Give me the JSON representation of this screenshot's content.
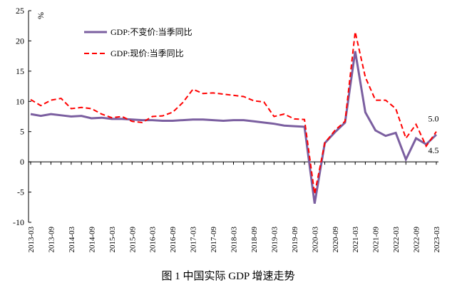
{
  "chart_data": {
    "type": "line",
    "y_label": "%",
    "caption": "图 1   中国实际 GDP 增速走势",
    "categories": [
      "2013-03",
      null,
      "2013-09",
      null,
      "2014-03",
      null,
      "2014-09",
      null,
      "2015-03",
      null,
      "2015-09",
      null,
      "2016-03",
      null,
      "2016-09",
      null,
      "2017-03",
      null,
      "2017-09",
      null,
      "2018-03",
      null,
      "2018-09",
      null,
      "2019-03",
      null,
      "2019-09",
      null,
      "2020-03",
      null,
      "2020-09",
      null,
      "2021-03",
      null,
      "2021-09",
      null,
      "2022-03",
      null,
      "2022-09",
      null,
      "2023-03"
    ],
    "series": [
      {
        "name": "GDP:不变价:当季同比",
        "color": "#7b5fa0",
        "dashed": false,
        "values": [
          7.9,
          7.6,
          7.9,
          7.7,
          7.5,
          7.6,
          7.2,
          7.3,
          7.1,
          7.1,
          7.0,
          6.9,
          6.9,
          6.8,
          6.8,
          6.9,
          7.0,
          7.0,
          6.9,
          6.8,
          6.9,
          6.9,
          6.7,
          6.5,
          6.3,
          6.0,
          5.9,
          5.8,
          -6.9,
          3.1,
          4.9,
          6.5,
          18.3,
          8.2,
          5.2,
          4.3,
          4.8,
          0.4,
          3.9,
          2.9,
          4.5
        ]
      },
      {
        "name": "GDP:现价:当季同比",
        "color": "#ff0000",
        "dashed": true,
        "values": [
          10.3,
          9.3,
          10.2,
          10.5,
          8.8,
          9.0,
          8.8,
          7.9,
          7.3,
          7.5,
          6.7,
          6.5,
          7.5,
          7.6,
          8.2,
          9.8,
          12.0,
          11.3,
          11.4,
          11.2,
          11.0,
          10.8,
          10.1,
          9.9,
          7.5,
          7.9,
          7.1,
          7.0,
          -5.3,
          3.1,
          5.2,
          6.7,
          21.5,
          14.0,
          10.2,
          10.2,
          8.8,
          3.9,
          6.2,
          2.6,
          5.0
        ]
      }
    ],
    "annotations": [
      "5.0",
      "4.5"
    ],
    "ylim": [
      -10,
      25
    ],
    "yticks": [
      -10,
      -5,
      0,
      5,
      10,
      15,
      20,
      25
    ],
    "grid": false,
    "legend": "top-left"
  }
}
